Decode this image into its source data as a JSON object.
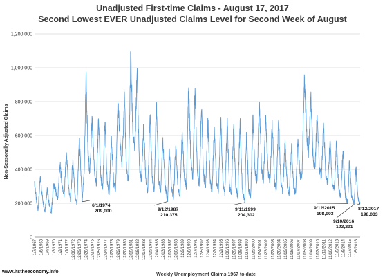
{
  "chart_data": {
    "type": "line",
    "title": "Unadjusted First-time Claims - August 17, 2017",
    "subtitle": "Second Lowest EVER Unadjusted Claims Level for Second Week of August",
    "xlabel": "Weekly Unemployment Claims 1967 to date",
    "ylabel": "Non-Seasonally Adjusted Claims",
    "ylim": [
      0,
      1200000
    ],
    "yticks": [
      "0",
      "200,000",
      "400,000",
      "600,000",
      "800,000",
      "1,000,000",
      "1,200,000"
    ],
    "grid": true,
    "x_range": [
      "1/7/1967",
      "8/12/2017"
    ],
    "x_tick_labels": [
      "1/7/1967",
      "1/6/1968",
      "1/4/1969",
      "1/3/1970",
      "1/2/1971",
      "1/1/1972",
      "12/30/1972",
      "12/29/1973",
      "12/28/1974",
      "12/27/1975",
      "12/25/1976",
      "12/24/1977",
      "12/23/1978",
      "12/22/1979",
      "12/20/1980",
      "12/19/1981",
      "12/18/1982",
      "12/17/1983",
      "12/15/1984",
      "12/14/1985",
      "12/13/1986",
      "12/12/1987",
      "12/10/1988",
      "12/9/1989",
      "12/8/1990",
      "12/7/1991",
      "12/5/1992",
      "12/4/1993",
      "12/3/1994",
      "12/2/1995",
      "11/30/1996",
      "11/29/1997",
      "11/28/1998",
      "11/27/1999",
      "11/25/2000",
      "11/24/2001",
      "11/23/2002",
      "11/22/2003",
      "11/20/2004",
      "11/19/2005",
      "11/18/2006",
      "11/17/2007",
      "11/15/2008",
      "11/14/2009",
      "11/13/2010",
      "11/12/2011",
      "11/10/2012",
      "11/9/2013",
      "11/8/2014",
      "11/7/2015",
      "11/5/2016"
    ],
    "series": [
      {
        "name": "",
        "color": "#5b9bd5",
        "values": [
          {
            "x": 1967.0,
            "y": 330000
          },
          {
            "x": 1967.3,
            "y": 210000
          },
          {
            "x": 1967.55,
            "y": 160000
          },
          {
            "x": 1967.9,
            "y": 360000
          },
          {
            "x": 1968.2,
            "y": 240000
          },
          {
            "x": 1968.6,
            "y": 150000
          },
          {
            "x": 1968.95,
            "y": 280000
          },
          {
            "x": 1969.3,
            "y": 190000
          },
          {
            "x": 1969.6,
            "y": 140000
          },
          {
            "x": 1969.95,
            "y": 310000
          },
          {
            "x": 1970.3,
            "y": 270000
          },
          {
            "x": 1970.6,
            "y": 220000
          },
          {
            "x": 1970.95,
            "y": 430000
          },
          {
            "x": 1971.3,
            "y": 300000
          },
          {
            "x": 1971.6,
            "y": 240000
          },
          {
            "x": 1971.95,
            "y": 500000
          },
          {
            "x": 1972.3,
            "y": 290000
          },
          {
            "x": 1972.6,
            "y": 210000
          },
          {
            "x": 1972.95,
            "y": 460000
          },
          {
            "x": 1973.3,
            "y": 240000
          },
          {
            "x": 1973.6,
            "y": 190000
          },
          {
            "x": 1973.95,
            "y": 580000
          },
          {
            "x": 1974.3,
            "y": 300000
          },
          {
            "x": 1974.42,
            "y": 209000
          },
          {
            "x": 1974.75,
            "y": 420000
          },
          {
            "x": 1975.0,
            "y": 960000
          },
          {
            "x": 1975.3,
            "y": 500000
          },
          {
            "x": 1975.6,
            "y": 380000
          },
          {
            "x": 1975.95,
            "y": 710000
          },
          {
            "x": 1976.3,
            "y": 390000
          },
          {
            "x": 1976.6,
            "y": 300000
          },
          {
            "x": 1976.95,
            "y": 690000
          },
          {
            "x": 1977.3,
            "y": 350000
          },
          {
            "x": 1977.6,
            "y": 280000
          },
          {
            "x": 1977.95,
            "y": 680000
          },
          {
            "x": 1978.3,
            "y": 320000
          },
          {
            "x": 1978.6,
            "y": 250000
          },
          {
            "x": 1978.95,
            "y": 600000
          },
          {
            "x": 1979.3,
            "y": 320000
          },
          {
            "x": 1979.6,
            "y": 280000
          },
          {
            "x": 1979.95,
            "y": 800000
          },
          {
            "x": 1980.3,
            "y": 560000
          },
          {
            "x": 1980.6,
            "y": 420000
          },
          {
            "x": 1980.95,
            "y": 840000
          },
          {
            "x": 1981.3,
            "y": 400000
          },
          {
            "x": 1981.6,
            "y": 330000
          },
          {
            "x": 1981.95,
            "y": 1070000
          },
          {
            "x": 1982.3,
            "y": 600000
          },
          {
            "x": 1982.6,
            "y": 520000
          },
          {
            "x": 1982.95,
            "y": 980000
          },
          {
            "x": 1983.3,
            "y": 420000
          },
          {
            "x": 1983.6,
            "y": 330000
          },
          {
            "x": 1983.95,
            "y": 650000
          },
          {
            "x": 1984.3,
            "y": 350000
          },
          {
            "x": 1984.6,
            "y": 270000
          },
          {
            "x": 1984.95,
            "y": 720000
          },
          {
            "x": 1985.3,
            "y": 360000
          },
          {
            "x": 1985.6,
            "y": 280000
          },
          {
            "x": 1985.95,
            "y": 800000
          },
          {
            "x": 1986.3,
            "y": 340000
          },
          {
            "x": 1986.6,
            "y": 270000
          },
          {
            "x": 1986.95,
            "y": 590000
          },
          {
            "x": 1987.3,
            "y": 300000
          },
          {
            "x": 1987.69,
            "y": 210375
          },
          {
            "x": 1987.95,
            "y": 520000
          },
          {
            "x": 1988.3,
            "y": 290000
          },
          {
            "x": 1988.6,
            "y": 230000
          },
          {
            "x": 1988.95,
            "y": 540000
          },
          {
            "x": 1989.3,
            "y": 300000
          },
          {
            "x": 1989.6,
            "y": 240000
          },
          {
            "x": 1989.95,
            "y": 610000
          },
          {
            "x": 1990.3,
            "y": 350000
          },
          {
            "x": 1990.6,
            "y": 290000
          },
          {
            "x": 1990.95,
            "y": 870000
          },
          {
            "x": 1991.3,
            "y": 460000
          },
          {
            "x": 1991.6,
            "y": 340000
          },
          {
            "x": 1991.95,
            "y": 880000
          },
          {
            "x": 1992.3,
            "y": 400000
          },
          {
            "x": 1992.6,
            "y": 300000
          },
          {
            "x": 1992.95,
            "y": 750000
          },
          {
            "x": 1993.3,
            "y": 360000
          },
          {
            "x": 1993.6,
            "y": 290000
          },
          {
            "x": 1993.95,
            "y": 690000
          },
          {
            "x": 1994.3,
            "y": 330000
          },
          {
            "x": 1994.6,
            "y": 270000
          },
          {
            "x": 1994.95,
            "y": 650000
          },
          {
            "x": 1995.3,
            "y": 320000
          },
          {
            "x": 1995.6,
            "y": 270000
          },
          {
            "x": 1995.95,
            "y": 700000
          },
          {
            "x": 1996.3,
            "y": 320000
          },
          {
            "x": 1996.6,
            "y": 260000
          },
          {
            "x": 1996.95,
            "y": 680000
          },
          {
            "x": 1997.3,
            "y": 300000
          },
          {
            "x": 1997.6,
            "y": 250000
          },
          {
            "x": 1997.95,
            "y": 650000
          },
          {
            "x": 1998.3,
            "y": 290000
          },
          {
            "x": 1998.6,
            "y": 240000
          },
          {
            "x": 1998.95,
            "y": 680000
          },
          {
            "x": 1999.3,
            "y": 280000
          },
          {
            "x": 1999.69,
            "y": 204302
          },
          {
            "x": 1999.95,
            "y": 620000
          },
          {
            "x": 2000.3,
            "y": 270000
          },
          {
            "x": 2000.6,
            "y": 240000
          },
          {
            "x": 2000.95,
            "y": 720000
          },
          {
            "x": 2001.3,
            "y": 380000
          },
          {
            "x": 2001.6,
            "y": 330000
          },
          {
            "x": 2001.95,
            "y": 800000
          },
          {
            "x": 2002.3,
            "y": 400000
          },
          {
            "x": 2002.6,
            "y": 330000
          },
          {
            "x": 2002.95,
            "y": 720000
          },
          {
            "x": 2003.3,
            "y": 390000
          },
          {
            "x": 2003.6,
            "y": 330000
          },
          {
            "x": 2003.95,
            "y": 690000
          },
          {
            "x": 2004.3,
            "y": 330000
          },
          {
            "x": 2004.6,
            "y": 280000
          },
          {
            "x": 2004.95,
            "y": 690000
          },
          {
            "x": 2005.3,
            "y": 310000
          },
          {
            "x": 2005.6,
            "y": 270000
          },
          {
            "x": 2005.95,
            "y": 570000
          },
          {
            "x": 2006.3,
            "y": 290000
          },
          {
            "x": 2006.6,
            "y": 260000
          },
          {
            "x": 2006.95,
            "y": 540000
          },
          {
            "x": 2007.3,
            "y": 290000
          },
          {
            "x": 2007.6,
            "y": 260000
          },
          {
            "x": 2007.95,
            "y": 580000
          },
          {
            "x": 2008.3,
            "y": 360000
          },
          {
            "x": 2008.6,
            "y": 370000
          },
          {
            "x": 2008.95,
            "y": 960000
          },
          {
            "x": 2009.3,
            "y": 620000
          },
          {
            "x": 2009.6,
            "y": 500000
          },
          {
            "x": 2009.95,
            "y": 830000
          },
          {
            "x": 2010.3,
            "y": 470000
          },
          {
            "x": 2010.6,
            "y": 400000
          },
          {
            "x": 2010.95,
            "y": 720000
          },
          {
            "x": 2011.3,
            "y": 400000
          },
          {
            "x": 2011.6,
            "y": 360000
          },
          {
            "x": 2011.95,
            "y": 660000
          },
          {
            "x": 2012.3,
            "y": 350000
          },
          {
            "x": 2012.6,
            "y": 320000
          },
          {
            "x": 2012.95,
            "y": 570000
          },
          {
            "x": 2013.3,
            "y": 310000
          },
          {
            "x": 2013.6,
            "y": 290000
          },
          {
            "x": 2013.95,
            "y": 550000
          },
          {
            "x": 2014.3,
            "y": 280000
          },
          {
            "x": 2014.6,
            "y": 240000
          },
          {
            "x": 2014.95,
            "y": 510000
          },
          {
            "x": 2015.3,
            "y": 250000
          },
          {
            "x": 2015.69,
            "y": 198903
          },
          {
            "x": 2015.95,
            "y": 450000
          },
          {
            "x": 2016.3,
            "y": 240000
          },
          {
            "x": 2016.69,
            "y": 193291
          },
          {
            "x": 2016.95,
            "y": 410000
          },
          {
            "x": 2017.3,
            "y": 230000
          },
          {
            "x": 2017.61,
            "y": 198033
          }
        ]
      }
    ],
    "annotations": [
      {
        "date": "6/1/1974",
        "value": "209,000",
        "x": 1974.42,
        "y": 209000
      },
      {
        "date": "9/12/1987",
        "value": "210,375",
        "x": 1987.69,
        "y": 210375
      },
      {
        "date": "9/11/1999",
        "value": "204,302",
        "x": 1999.69,
        "y": 204302
      },
      {
        "date": "9/12/2015",
        "value": "198,903",
        "x": 2015.69,
        "y": 198903
      },
      {
        "date": "9/10/2016",
        "value": "193,291",
        "x": 2016.69,
        "y": 193291
      },
      {
        "date": "8/12/2017",
        "value": "198,033",
        "x": 2017.61,
        "y": 198033
      }
    ]
  },
  "footer": "www.itstheeconomy.info"
}
